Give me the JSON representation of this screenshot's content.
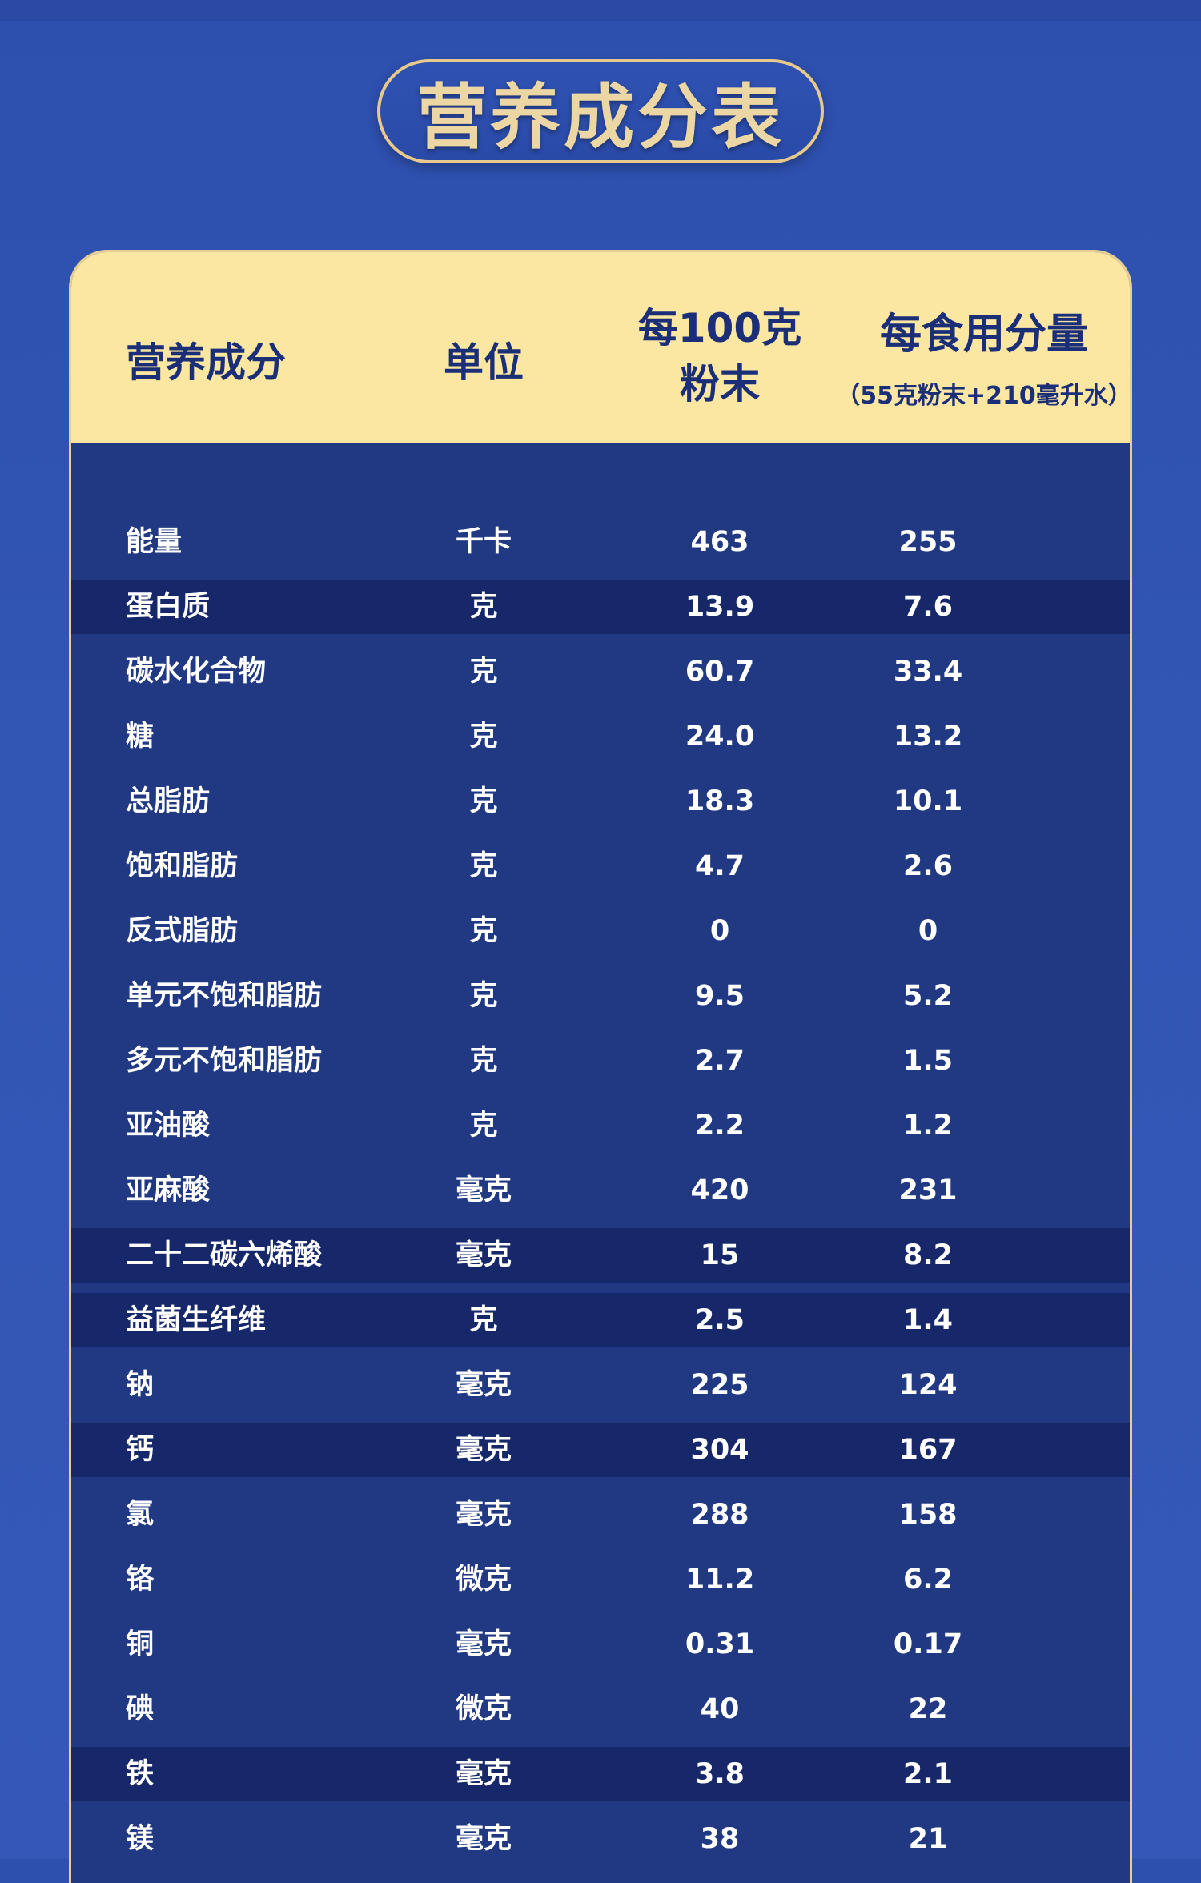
{
  "title": "营养成分表",
  "header": {
    "name": "营养成分",
    "unit": "单位",
    "per100_line1": "每100克",
    "per100_line2": "粉末",
    "serving": "每食用分量",
    "serving_sub": "（55克粉末+210毫升水）"
  },
  "rows": [
    {
      "name": "能量",
      "unit": "千卡",
      "per100": "463",
      "serving": "255"
    },
    {
      "name": "蛋白质",
      "unit": "克",
      "per100": "13.9",
      "serving": "7.6"
    },
    {
      "name": "碳水化合物",
      "unit": "克",
      "per100": "60.7",
      "serving": "33.4"
    },
    {
      "name": "糖",
      "unit": "克",
      "per100": "24.0",
      "serving": "13.2"
    },
    {
      "name": "总脂肪",
      "unit": "克",
      "per100": "18.3",
      "serving": "10.1"
    },
    {
      "name": "饱和脂肪",
      "unit": "克",
      "per100": "4.7",
      "serving": "2.6"
    },
    {
      "name": "反式脂肪",
      "unit": "克",
      "per100": "0",
      "serving": "0"
    },
    {
      "name": "单元不饱和脂肪",
      "unit": "克",
      "per100": "9.5",
      "serving": "5.2"
    },
    {
      "name": "多元不饱和脂肪",
      "unit": "克",
      "per100": "2.7",
      "serving": "1.5"
    },
    {
      "name": "亚油酸",
      "unit": "克",
      "per100": "2.2",
      "serving": "1.2"
    },
    {
      "name": "亚麻酸",
      "unit": "毫克",
      "per100": "420",
      "serving": "231"
    },
    {
      "name": "二十二碳六烯酸",
      "unit": "毫克",
      "per100": "15",
      "serving": "8.2"
    },
    {
      "name": "益菌生纤维",
      "unit": "克",
      "per100": "2.5",
      "serving": "1.4"
    },
    {
      "name": "钠",
      "unit": "毫克",
      "per100": "225",
      "serving": "124"
    },
    {
      "name": "钙",
      "unit": "毫克",
      "per100": "304",
      "serving": "167"
    },
    {
      "name": "氯",
      "unit": "毫克",
      "per100": "288",
      "serving": "158"
    },
    {
      "name": "铬",
      "unit": "微克",
      "per100": "11.2",
      "serving": "6.2"
    },
    {
      "name": "铜",
      "unit": "毫克",
      "per100": "0.31",
      "serving": "0.17"
    },
    {
      "name": "碘",
      "unit": "微克",
      "per100": "40",
      "serving": "22"
    },
    {
      "name": "铁",
      "unit": "毫克",
      "per100": "3.8",
      "serving": "2.1"
    },
    {
      "name": "镁",
      "unit": "毫克",
      "per100": "38",
      "serving": "21"
    }
  ],
  "dark_rows": [
    1,
    11,
    12,
    14,
    19
  ]
}
